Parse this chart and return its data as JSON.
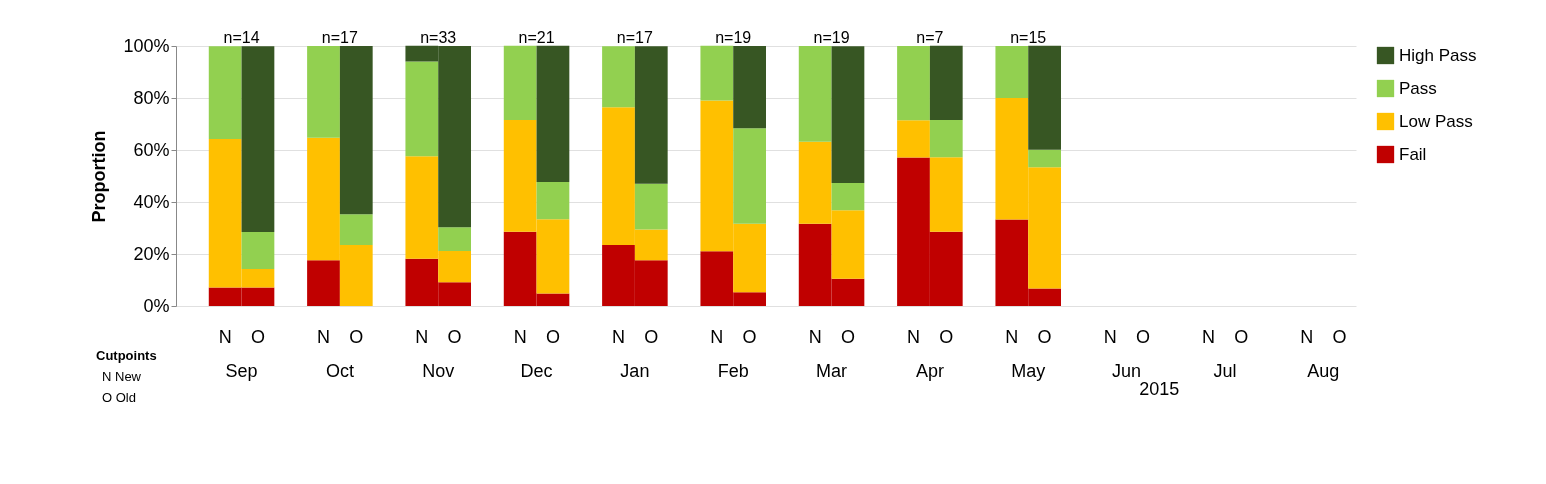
{
  "chart_data": {
    "type": "bar",
    "stacked": true,
    "ylabel": "Proportion",
    "categories": [
      "N",
      "O",
      "N",
      "O",
      "N",
      "O",
      "N",
      "O",
      "N",
      "O",
      "N",
      "O",
      "N",
      "O",
      "N",
      "O",
      "N",
      "O",
      "N",
      "O",
      "N",
      "O",
      "N",
      "O"
    ],
    "series": [
      {
        "name": "Fail",
        "color": "#c00000",
        "values": [
          7.1,
          7.1,
          17.6,
          0,
          18.2,
          9.1,
          28.6,
          4.8,
          23.5,
          17.6,
          21.1,
          5.3,
          31.6,
          10.5,
          57.1,
          28.6,
          33.3,
          6.7,
          null,
          null,
          null,
          null,
          null,
          null
        ]
      },
      {
        "name": "Low Pass",
        "color": "#ffc000",
        "values": [
          57.1,
          7.1,
          47.1,
          23.5,
          39.4,
          12.1,
          42.9,
          28.6,
          52.9,
          11.8,
          57.9,
          26.3,
          31.6,
          26.3,
          14.3,
          28.6,
          46.7,
          46.7,
          null,
          null,
          null,
          null,
          null,
          null
        ]
      },
      {
        "name": "Pass",
        "color": "#92d050",
        "values": [
          35.7,
          14.3,
          35.3,
          11.8,
          36.4,
          9.1,
          28.6,
          14.3,
          23.5,
          17.6,
          21.1,
          36.8,
          36.8,
          10.5,
          28.6,
          14.3,
          20,
          6.7,
          null,
          null,
          null,
          null,
          null,
          null
        ]
      },
      {
        "name": "High Pass",
        "color": "#375623",
        "values": [
          0,
          71.4,
          0,
          64.7,
          6.1,
          69.7,
          0,
          52.4,
          0,
          52.9,
          0,
          31.6,
          0,
          52.6,
          0,
          28.6,
          0,
          40,
          null,
          null,
          null,
          null,
          null,
          null
        ]
      }
    ],
    "ylim": [
      0,
      100
    ],
    "yticks": [
      {
        "value": 0,
        "label": "0%"
      },
      {
        "value": 20,
        "label": "20%"
      },
      {
        "value": 40,
        "label": "40%"
      },
      {
        "value": 60,
        "label": "60%"
      },
      {
        "value": 80,
        "label": "80%"
      },
      {
        "value": 100,
        "label": "100%"
      }
    ],
    "grid": "y",
    "legend": "right",
    "annotations": [
      "Sep",
      "Oct",
      "Nov",
      "Dec",
      "Jan",
      "Feb",
      "Mar",
      "Apr",
      "May",
      "Jun",
      "Jul",
      "Aug",
      "n=14",
      "n=17",
      "n=33",
      "n=21",
      "n=17",
      "n=19",
      "n=19",
      "n=7",
      "n=15",
      "2015",
      "Cutpoints",
      "N New",
      "O Old"
    ]
  }
}
